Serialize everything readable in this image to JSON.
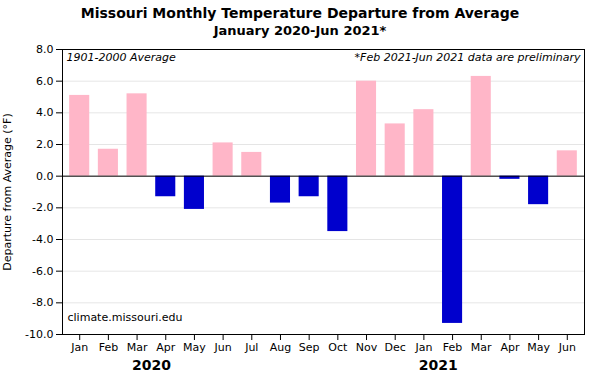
{
  "chart_data": {
    "type": "bar",
    "title": "Missouri Monthly Temperature Departure from Average",
    "subtitle": "January 2020-Jun 2021*",
    "y_label": "Departure from Average (°F)",
    "annotations": [
      "1901-2000 Average",
      "*Feb 2021-Jun 2021 data are preliminary",
      "climate.missouri.edu",
      {
        "text": "2020",
        "x": 2.5
      },
      {
        "text": "2021",
        "x": 12.5
      }
    ],
    "categories": [
      "Jan",
      "Feb",
      "Mar",
      "Apr",
      "May",
      "Jun",
      "Jul",
      "Aug",
      "Sep",
      "Oct",
      "Nov",
      "Dec",
      "Jan",
      "Feb",
      "Mar",
      "Apr",
      "May",
      "Jun"
    ],
    "values": [
      5.1,
      1.7,
      5.2,
      -1.3,
      -2.1,
      2.1,
      1.5,
      -1.7,
      -1.3,
      -3.5,
      6.0,
      3.3,
      4.2,
      -9.3,
      6.3,
      -0.2,
      -1.8,
      1.6
    ],
    "colors": [
      "#ffb6c8",
      "#ffb6c8",
      "#ffb6c8",
      "#0000cd",
      "#0000cd",
      "#ffb6c8",
      "#ffb6c8",
      "#0000cd",
      "#0000cd",
      "#0000cd",
      "#ffb6c8",
      "#ffb6c8",
      "#ffb6c8",
      "#0000cd",
      "#ffb6c8",
      "#0000cd",
      "#0000cd",
      "#ffb6c8"
    ],
    "ylim": [
      -10.0,
      8.0
    ],
    "yticks": [
      {
        "value": -10.0,
        "label": "-10.0"
      },
      {
        "value": -8.0,
        "label": "-8.0"
      },
      {
        "value": -6.0,
        "label": "-6.0"
      },
      {
        "value": -4.0,
        "label": "-4.0"
      },
      {
        "value": -2.0,
        "label": "-2.0"
      },
      {
        "value": 0.0,
        "label": "0.0"
      },
      {
        "value": 2.0,
        "label": "2.0"
      },
      {
        "value": 4.0,
        "label": "4.0"
      },
      {
        "value": 6.0,
        "label": "6.0"
      },
      {
        "value": 8.0,
        "label": "8.0"
      }
    ],
    "grid": true
  }
}
